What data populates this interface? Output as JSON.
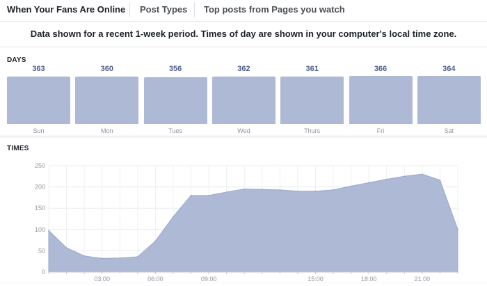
{
  "tabs": [
    {
      "label": "When Your Fans Are Online",
      "active": true
    },
    {
      "label": "Post Types",
      "active": false
    },
    {
      "label": "Top posts from Pages you watch",
      "active": false
    }
  ],
  "notice": "Data shown for a recent 1-week period. Times of day are shown in your computer's local time zone.",
  "days": {
    "label": "DAYS",
    "items": [
      {
        "day": "Sun",
        "value": 363
      },
      {
        "day": "Mon",
        "value": 360
      },
      {
        "day": "Tues",
        "value": 356
      },
      {
        "day": "Wed",
        "value": 362
      },
      {
        "day": "Thurs",
        "value": 361
      },
      {
        "day": "Fri",
        "value": 366
      },
      {
        "day": "Sat",
        "value": 364
      }
    ]
  },
  "times": {
    "label": "TIMES"
  },
  "chart_data": {
    "type": "area",
    "x": [
      0,
      1,
      2,
      3,
      4,
      5,
      6,
      7,
      8,
      9,
      10,
      11,
      12,
      13,
      14,
      15,
      16,
      17,
      18,
      19,
      20,
      21,
      22,
      23
    ],
    "values": [
      98,
      57,
      38,
      32,
      33,
      36,
      73,
      130,
      180,
      180,
      188,
      195,
      194,
      193,
      190,
      190,
      193,
      202,
      210,
      218,
      225,
      230,
      216,
      100
    ],
    "xtick_labels": [
      "03:00",
      "06:00",
      "09:00",
      "15:00",
      "18:00",
      "21:00"
    ],
    "xtick_hours": [
      3,
      6,
      9,
      15,
      18,
      21
    ],
    "ylim": [
      0,
      250
    ],
    "yticks": [
      0,
      50,
      100,
      150,
      200,
      250
    ],
    "color": "#aeb9d6",
    "grid": true
  },
  "colors": {
    "bar": "#aeb9d6",
    "value_text": "#4e5f8a"
  }
}
